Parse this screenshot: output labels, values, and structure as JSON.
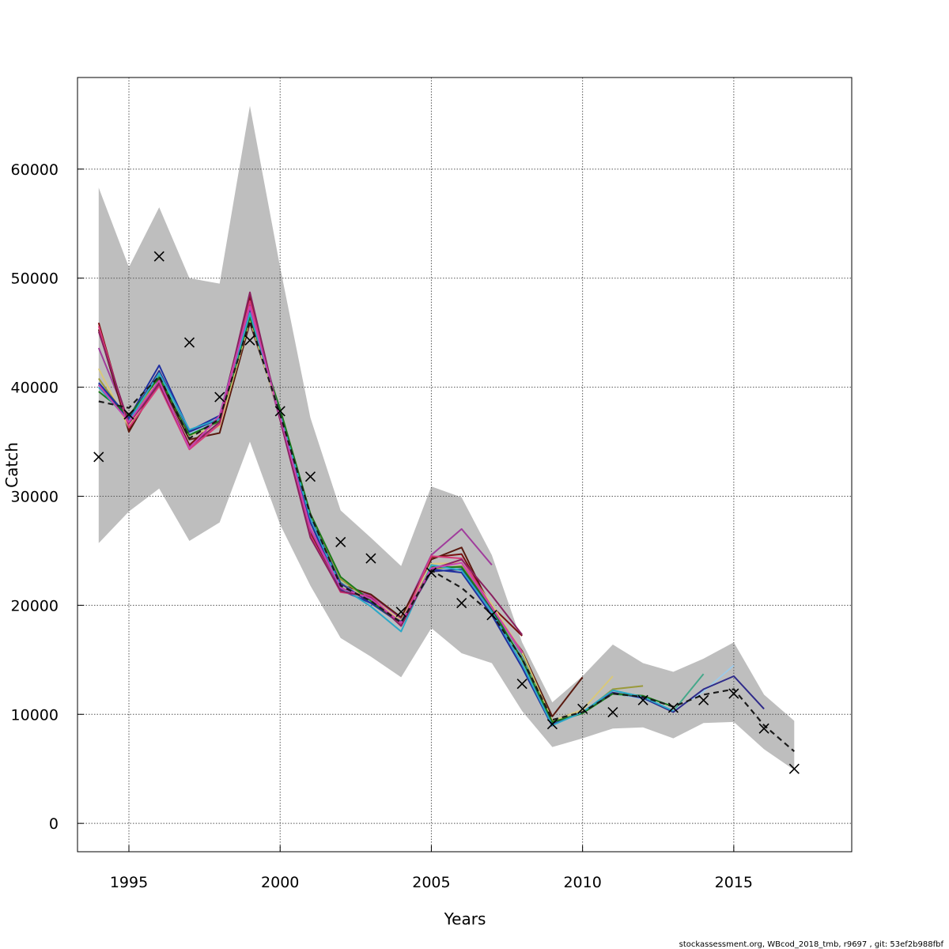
{
  "chart_data": {
    "type": "line",
    "xlabel": "Years",
    "ylabel": "Catch",
    "xlim": [
      1993.3,
      2018.9
    ],
    "ylim": [
      -2600,
      68400
    ],
    "x_ticks": [
      1995,
      2000,
      2005,
      2010,
      2015
    ],
    "y_ticks": [
      0,
      10000,
      20000,
      30000,
      40000,
      50000,
      60000
    ],
    "grid": true,
    "footer": "stockassessment.org, WBcod_2018_tmb, r9697 , git: 53ef2b988fbf",
    "observed": {
      "marker": "x",
      "x": [
        1994,
        1995,
        1996,
        1997,
        1998,
        1999,
        2000,
        2001,
        2002,
        2003,
        2004,
        2005,
        2006,
        2007,
        2008,
        2009,
        2010,
        2011,
        2012,
        2013,
        2014,
        2015,
        2016,
        2017
      ],
      "y": [
        33600,
        37500,
        52000,
        44100,
        39100,
        44300,
        37800,
        31800,
        25800,
        24300,
        19400,
        23000,
        20200,
        19100,
        12800,
        9100,
        10500,
        10200,
        11300,
        10600,
        11300,
        11900,
        8700,
        5000
      ]
    },
    "confidence_band": {
      "color": "#bebebe",
      "x": [
        1994,
        1995,
        1996,
        1997,
        1998,
        1999,
        2000,
        2001,
        2002,
        2003,
        2004,
        2005,
        2006,
        2007,
        2008,
        2009,
        2010,
        2011,
        2012,
        2013,
        2014,
        2015,
        2016,
        2017
      ],
      "upper": [
        58300,
        51000,
        56500,
        50000,
        49500,
        65800,
        51000,
        37200,
        28700,
        26200,
        23600,
        30900,
        29900,
        24600,
        16600,
        11100,
        13500,
        16400,
        14700,
        13900,
        15100,
        16600,
        11800,
        9400
      ],
      "lower": [
        25700,
        28600,
        30700,
        25900,
        27600,
        35000,
        27400,
        21800,
        17000,
        15300,
        13400,
        17900,
        15600,
        14700,
        10300,
        7000,
        7800,
        8700,
        8800,
        7800,
        9200,
        9300,
        6800,
        4900
      ]
    },
    "base_fit": {
      "style": "dashed",
      "color": "#1a1a1a",
      "x": [
        1994,
        1995,
        1996,
        1997,
        1998,
        1999,
        2000,
        2001,
        2002,
        2003,
        2004,
        2005,
        2006,
        2007,
        2008,
        2009,
        2010,
        2011,
        2012,
        2013,
        2014,
        2015,
        2016,
        2017
      ],
      "y": [
        38700,
        38100,
        41000,
        35300,
        37100,
        46100,
        37500,
        28300,
        21800,
        20400,
        18400,
        23200,
        21600,
        19200,
        15100,
        9500,
        10200,
        11900,
        11600,
        10700,
        11800,
        12300,
        9000,
        6600
      ]
    },
    "series": [
      {
        "color": "#7a1010",
        "x": [
          1994,
          1995,
          1996,
          1997,
          1998,
          1999,
          2000,
          2001,
          2002,
          2003,
          2004,
          2005,
          2006,
          2007,
          2008
        ],
        "y": [
          45900,
          36100,
          40400,
          34700,
          37200,
          48300,
          37100,
          26600,
          21600,
          20600,
          18600,
          24400,
          24700,
          19900,
          17200
        ]
      },
      {
        "color": "#a03c9c",
        "x": [
          1994,
          1995,
          1996,
          1997,
          1998,
          1999,
          2000,
          2001,
          2002,
          2003,
          2004,
          2005,
          2006,
          2007
        ],
        "y": [
          43600,
          36800,
          40200,
          34400,
          37300,
          47000,
          37000,
          26900,
          21500,
          20900,
          18800,
          24600,
          27000,
          23700
        ]
      },
      {
        "color": "#5a1a10",
        "x": [
          1994,
          1995,
          1996,
          1997,
          1998,
          1999,
          2000,
          2001,
          2002,
          2003,
          2004,
          2005,
          2006,
          2007,
          2008,
          2009,
          2010
        ],
        "y": [
          45300,
          35900,
          40700,
          35200,
          35800,
          45900,
          37600,
          27800,
          21900,
          21000,
          18900,
          24200,
          25300,
          19600,
          15800,
          9800,
          13400
        ]
      },
      {
        "color": "#d9c87a",
        "x": [
          1994,
          1995,
          1996,
          1997,
          1998,
          1999,
          2000,
          2001,
          2002,
          2003,
          2004,
          2005,
          2006,
          2007,
          2008,
          2009,
          2010,
          2011
        ],
        "y": [
          41700,
          36300,
          41200,
          35600,
          36400,
          46200,
          37400,
          27500,
          21700,
          20700,
          18600,
          23800,
          23900,
          20100,
          15700,
          9400,
          10400,
          13500
        ]
      },
      {
        "color": "#9a9a3a",
        "x": [
          1994,
          1995,
          1996,
          1997,
          1998,
          1999,
          2000,
          2001,
          2002,
          2003,
          2004,
          2005,
          2006,
          2007,
          2008,
          2009,
          2010,
          2011,
          2012
        ],
        "y": [
          40800,
          36900,
          41000,
          35900,
          36800,
          46600,
          37800,
          28100,
          22400,
          20400,
          18500,
          23300,
          23600,
          19800,
          15400,
          9300,
          10100,
          12300,
          12600
        ]
      },
      {
        "color": "#44a88a",
        "x": [
          1994,
          1995,
          1996,
          1997,
          1998,
          1999,
          2000,
          2001,
          2002,
          2003,
          2004,
          2005,
          2006,
          2007,
          2008,
          2009,
          2010,
          2011,
          2012,
          2013,
          2014
        ],
        "y": [
          40300,
          37100,
          41100,
          35700,
          36900,
          46700,
          37900,
          28000,
          22100,
          20200,
          18300,
          23100,
          23300,
          19500,
          15300,
          9200,
          10100,
          11900,
          11500,
          10300,
          13700
        ]
      },
      {
        "color": "#9ecae8",
        "x": [
          1994,
          1995,
          1996,
          1997,
          1998,
          1999,
          2000,
          2001,
          2002,
          2003,
          2004,
          2005,
          2006,
          2007,
          2008,
          2009,
          2010,
          2011,
          2012,
          2013,
          2014,
          2015
        ],
        "y": [
          40100,
          37000,
          41400,
          35800,
          37000,
          46900,
          37700,
          27900,
          22000,
          20300,
          18200,
          23200,
          23400,
          19600,
          15200,
          9100,
          10200,
          12000,
          11400,
          10300,
          12100,
          14500
        ]
      },
      {
        "color": "#2e2a8a",
        "x": [
          1994,
          1995,
          1996,
          1997,
          1998,
          1999,
          2000,
          2001,
          2002,
          2003,
          2004,
          2005,
          2006,
          2007,
          2008,
          2009,
          2010,
          2011,
          2012,
          2013,
          2014,
          2015,
          2016
        ],
        "y": [
          40200,
          37000,
          41500,
          35900,
          37100,
          47100,
          37600,
          28000,
          22000,
          20200,
          18300,
          23100,
          23300,
          19500,
          15100,
          9100,
          10200,
          12000,
          11500,
          10200,
          12300,
          13500,
          10500
        ]
      },
      {
        "color": "#1f2fa0",
        "x": [
          1994,
          1995,
          1996,
          1997,
          1998,
          1999,
          2000,
          2001,
          2002,
          2003,
          2004,
          2005,
          2006,
          2007,
          2008,
          2009
        ],
        "y": [
          40400,
          37200,
          42000,
          36000,
          37400,
          47700,
          37500,
          27600,
          21400,
          20200,
          18500,
          23300,
          23000,
          19100,
          14300,
          8900
        ]
      },
      {
        "color": "#1a7a1a",
        "x": [
          1994,
          1995,
          1996,
          1997,
          1998,
          1999,
          2000,
          2001,
          2002,
          2003,
          2004,
          2005,
          2006,
          2007,
          2008,
          2009,
          2010,
          2011,
          2012,
          2013
        ],
        "y": [
          39600,
          37400,
          40900,
          35600,
          36900,
          46400,
          38000,
          28400,
          22600,
          20400,
          18300,
          23500,
          23500,
          19700,
          15000,
          9300,
          10100,
          11900,
          11700,
          10700
        ]
      },
      {
        "color": "#2aa8c8",
        "x": [
          1994,
          1995,
          1996,
          1997,
          1998,
          1999,
          2000,
          2001,
          2002,
          2003,
          2004,
          2005,
          2006,
          2007,
          2008,
          2009,
          2010,
          2011,
          2012,
          2013
        ],
        "y": [
          40000,
          36900,
          41300,
          36100,
          37100,
          46800,
          37500,
          28000,
          21700,
          19900,
          17600,
          23700,
          23200,
          19400,
          14600,
          9000,
          10200,
          12200,
          11600,
          10300
        ]
      },
      {
        "color": "#d83a7a",
        "x": [
          1994,
          1995,
          1996,
          1997,
          1998,
          1999,
          2000,
          2001,
          2002,
          2003,
          2004,
          2005,
          2006,
          2007,
          2008
        ],
        "y": [
          45600,
          36300,
          40100,
          34300,
          36600,
          47900,
          37200,
          26400,
          21200,
          20800,
          18200,
          24500,
          24300,
          19800,
          15700
        ]
      },
      {
        "color": "#8a2060",
        "x": [
          1994,
          1995,
          1996,
          1997,
          1998,
          1999,
          2000,
          2001,
          2002,
          2003,
          2004,
          2005,
          2006,
          2007,
          2008
        ],
        "y": [
          45100,
          36700,
          40300,
          34500,
          36800,
          48700,
          37000,
          26200,
          21300,
          20700,
          18100,
          23300,
          24200,
          20900,
          17300
        ]
      },
      {
        "color": "#c844b0",
        "x": [
          1994,
          1995,
          1996,
          1997,
          1998,
          1999,
          2000,
          2001,
          2002,
          2003,
          2004,
          2005,
          2006,
          2007,
          2008
        ],
        "y": [
          40200,
          36800,
          40600,
          34400,
          37400,
          47400,
          37300,
          27100,
          21600,
          20600,
          18400,
          23400,
          23900,
          19800,
          15600
        ]
      }
    ]
  }
}
